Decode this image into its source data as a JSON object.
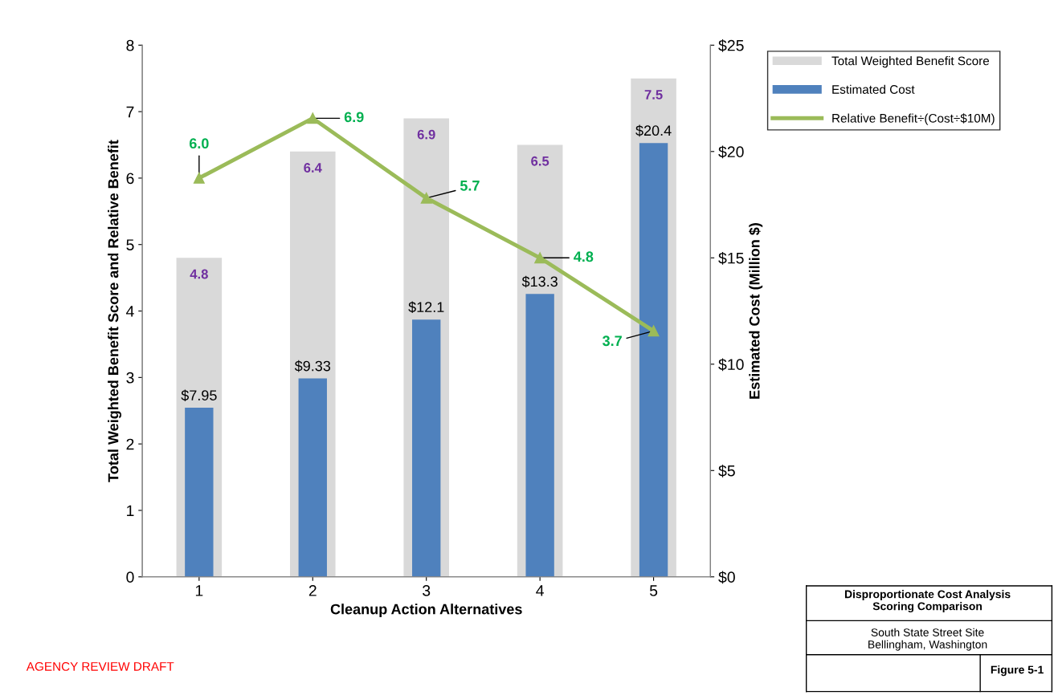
{
  "chart_data": {
    "type": "bar",
    "xlabel": "Cleanup Action Alternatives",
    "ylabel": "Total Weighted Benefit Score and Relative Benefit",
    "y2label": "Estimated Cost (Million $)",
    "categories": [
      "1",
      "2",
      "3",
      "4",
      "5"
    ],
    "series": [
      {
        "name": "Total Weighted Benefit Score",
        "color": "#d9d9d9",
        "values": [
          4.8,
          6.4,
          6.9,
          6.5,
          7.5
        ],
        "value_labels": [
          "4.8",
          "6.4",
          "6.9",
          "6.5",
          "7.5"
        ]
      },
      {
        "name": "Estimated Cost",
        "axis": "y2",
        "color": "#4f81bd",
        "values": [
          7.95,
          9.33,
          12.1,
          13.3,
          20.4
        ],
        "value_labels": [
          "$7.95",
          "$9.33",
          "$12.1",
          "$13.3",
          "$20.4"
        ]
      },
      {
        "name": "Relative Benefit÷(Cost÷$10M)",
        "type": "line",
        "color": "#9bbb59",
        "marker": "triangle",
        "values": [
          6.0,
          6.9,
          5.7,
          4.8,
          3.7
        ],
        "value_labels": [
          "6.0",
          "6.9",
          "5.7",
          "4.8",
          "3.7"
        ]
      }
    ],
    "ylim": [
      0,
      8
    ],
    "yticks": [
      0,
      1,
      2,
      3,
      4,
      5,
      6,
      7,
      8
    ],
    "y2lim": [
      0,
      25
    ],
    "y2ticks": [
      {
        "value": 0,
        "label": "$0"
      },
      {
        "value": 5,
        "label": "$5"
      },
      {
        "value": 10,
        "label": "$10"
      },
      {
        "value": 15,
        "label": "$15"
      },
      {
        "value": 20,
        "label": "$20"
      },
      {
        "value": 25,
        "label": "$25"
      }
    ],
    "grid": false,
    "legend": "top right",
    "annotations": [
      "AGENCY REVIEW DRAFT",
      "Disproportionate Cost Analysis\nScoring Comparison",
      "South State Street Site\nBellingham, Washington",
      "Figure 5-1"
    ]
  }
}
